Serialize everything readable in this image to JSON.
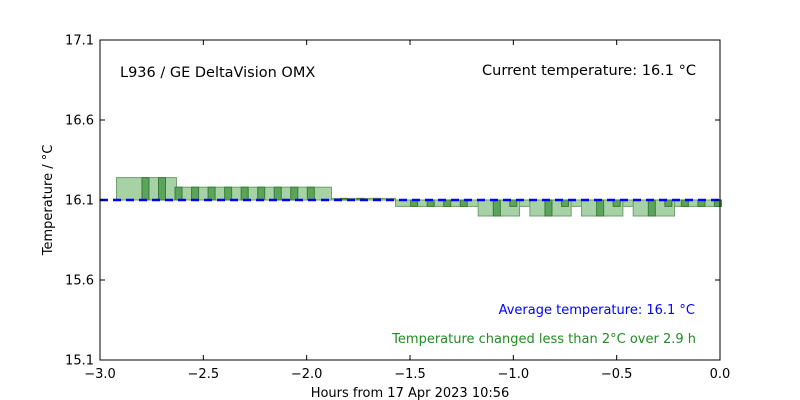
{
  "chart_data": {
    "type": "bar",
    "xlabel": "Hours from 17 Apr 2023 10:56",
    "ylabel": "Temperature / °C",
    "xlim": [
      -3.0,
      0.0
    ],
    "ylim": [
      15.1,
      17.1
    ],
    "xticks": [
      "−3.0",
      "−2.5",
      "−2.0",
      "−1.5",
      "−1.0",
      "−0.5",
      "0.0"
    ],
    "xtick_values": [
      -3.0,
      -2.5,
      -2.0,
      -1.5,
      -1.0,
      -0.5,
      0.0
    ],
    "yticks": [
      "15.1",
      "15.6",
      "16.1",
      "16.6",
      "17.1"
    ],
    "ytick_values": [
      15.1,
      15.6,
      16.1,
      16.6,
      17.1
    ],
    "grid": false,
    "reference_temperature": 16.1,
    "average_temperature": 16.1,
    "series": [
      {
        "style": "wide-light-green",
        "color": "#a6d2a6",
        "edge": "#6f9f6f",
        "bars": [
          {
            "x0": -2.92,
            "x1": -2.63,
            "y": 16.24
          },
          {
            "x0": -2.63,
            "x1": -1.88,
            "y": 16.18
          },
          {
            "x0": -1.88,
            "x1": -1.57,
            "y": 16.11
          },
          {
            "x0": -1.57,
            "x1": -1.17,
            "y": 16.06
          },
          {
            "x0": -1.17,
            "x1": -0.97,
            "y": 16.0
          },
          {
            "x0": -0.97,
            "x1": -0.92,
            "y": 16.06
          },
          {
            "x0": -0.92,
            "x1": -0.72,
            "y": 16.0
          },
          {
            "x0": -0.72,
            "x1": -0.67,
            "y": 16.06
          },
          {
            "x0": -0.67,
            "x1": -0.47,
            "y": 16.0
          },
          {
            "x0": -0.47,
            "x1": -0.42,
            "y": 16.06
          },
          {
            "x0": -0.42,
            "x1": -0.22,
            "y": 16.0
          },
          {
            "x0": -0.22,
            "x1": 0.0,
            "y": 16.06
          }
        ]
      },
      {
        "style": "narrow-dark-green",
        "color": "#5aa55a",
        "edge": "#3c7a3c",
        "bars": [
          {
            "x": -2.78,
            "y": 16.24
          },
          {
            "x": -2.7,
            "y": 16.24
          },
          {
            "x": -2.62,
            "y": 16.18
          },
          {
            "x": -2.54,
            "y": 16.18
          },
          {
            "x": -2.46,
            "y": 16.18
          },
          {
            "x": -2.38,
            "y": 16.18
          },
          {
            "x": -2.3,
            "y": 16.18
          },
          {
            "x": -2.22,
            "y": 16.18
          },
          {
            "x": -2.14,
            "y": 16.18
          },
          {
            "x": -2.06,
            "y": 16.18
          },
          {
            "x": -1.98,
            "y": 16.18
          },
          {
            "x": -1.82,
            "y": 16.11
          },
          {
            "x": -1.74,
            "y": 16.11
          },
          {
            "x": -1.66,
            "y": 16.11
          },
          {
            "x": -1.48,
            "y": 16.06
          },
          {
            "x": -1.4,
            "y": 16.06
          },
          {
            "x": -1.32,
            "y": 16.06
          },
          {
            "x": -1.24,
            "y": 16.06
          },
          {
            "x": -1.08,
            "y": 16.0
          },
          {
            "x": -1.0,
            "y": 16.06
          },
          {
            "x": -0.83,
            "y": 16.0
          },
          {
            "x": -0.75,
            "y": 16.06
          },
          {
            "x": -0.58,
            "y": 16.0
          },
          {
            "x": -0.5,
            "y": 16.06
          },
          {
            "x": -0.33,
            "y": 16.0
          },
          {
            "x": -0.25,
            "y": 16.06
          },
          {
            "x": -0.17,
            "y": 16.06
          },
          {
            "x": -0.09,
            "y": 16.06
          },
          {
            "x": -0.01,
            "y": 16.06
          }
        ]
      }
    ],
    "average_line_color": "#0000ff",
    "annotations": {
      "instrument": "L936 / GE DeltaVision OMX",
      "current": "Current temperature: 16.1 °C",
      "average": "Average temperature: 16.1 °C",
      "change": "Temperature changed less than 2°C over 2.9 h"
    },
    "annotation_colors": {
      "instrument": "#000000",
      "current": "#000000",
      "average": "#0000ff",
      "change": "#228b22"
    }
  }
}
